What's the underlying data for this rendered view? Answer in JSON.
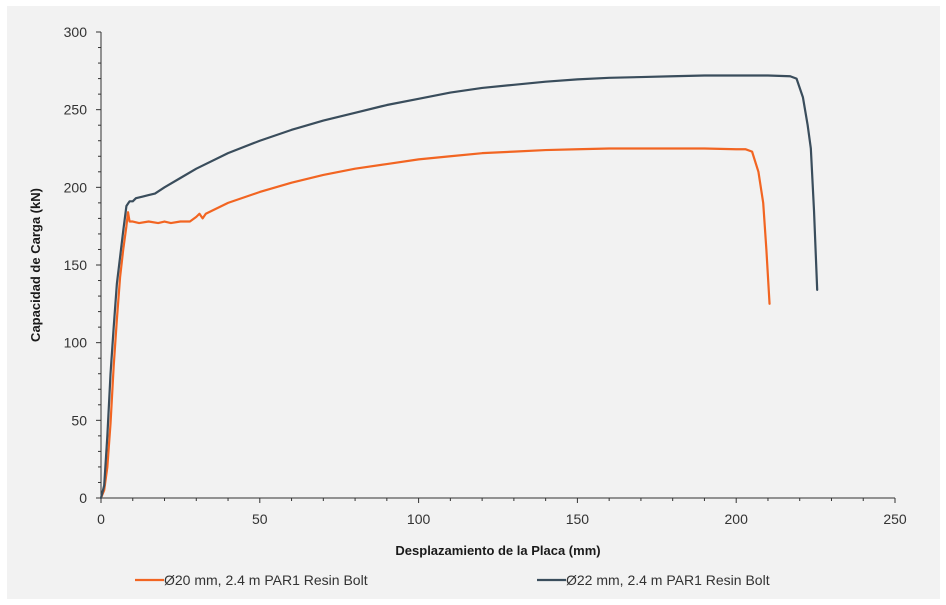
{
  "chart_data": {
    "type": "line",
    "xlabel": "Desplazamiento de la Placa (mm)",
    "ylabel": "Capacidad de Carga (kN)",
    "xlim": [
      0,
      250
    ],
    "ylim": [
      0,
      300
    ],
    "x_ticks": [
      0,
      50,
      100,
      150,
      200,
      250
    ],
    "y_ticks": [
      0,
      50,
      100,
      150,
      200,
      250,
      300
    ],
    "x_tick_labels": [
      "0",
      "50",
      "100",
      "150",
      "200",
      "250"
    ],
    "y_tick_labels": [
      "0",
      "50",
      "100",
      "150",
      "200",
      "250",
      "300"
    ],
    "grid": false,
    "legend_position": "bottom",
    "series": [
      {
        "name": "Ø20 mm, 2.4 m PAR1 Resin Bolt",
        "color": "#f26522",
        "points": [
          [
            0,
            0
          ],
          [
            1,
            5
          ],
          [
            2,
            20
          ],
          [
            3,
            48
          ],
          [
            4,
            85
          ],
          [
            5,
            115
          ],
          [
            6,
            142
          ],
          [
            7,
            160
          ],
          [
            8,
            175
          ],
          [
            8.5,
            184
          ],
          [
            9,
            178
          ],
          [
            10,
            178
          ],
          [
            12,
            177
          ],
          [
            15,
            178
          ],
          [
            18,
            177
          ],
          [
            20,
            178
          ],
          [
            22,
            177
          ],
          [
            25,
            178
          ],
          [
            28,
            178
          ],
          [
            30,
            181
          ],
          [
            31,
            183
          ],
          [
            32,
            180
          ],
          [
            33,
            183
          ],
          [
            35,
            185
          ],
          [
            40,
            190
          ],
          [
            50,
            197
          ],
          [
            60,
            203
          ],
          [
            70,
            208
          ],
          [
            80,
            212
          ],
          [
            90,
            215
          ],
          [
            100,
            218
          ],
          [
            110,
            220
          ],
          [
            120,
            222
          ],
          [
            130,
            223
          ],
          [
            140,
            224
          ],
          [
            150,
            224.5
          ],
          [
            160,
            225
          ],
          [
            170,
            225
          ],
          [
            180,
            225
          ],
          [
            190,
            225
          ],
          [
            200,
            224.5
          ],
          [
            203,
            224.5
          ],
          [
            205,
            223
          ],
          [
            207,
            210
          ],
          [
            208.5,
            190
          ],
          [
            209.5,
            160
          ],
          [
            210.5,
            125
          ]
        ]
      },
      {
        "name": "Ø22 mm, 2.4 m PAR1 Resin Bolt",
        "color": "#3a4d5c",
        "points": [
          [
            0,
            0
          ],
          [
            1,
            8
          ],
          [
            2,
            40
          ],
          [
            3,
            80
          ],
          [
            4,
            110
          ],
          [
            5,
            138
          ],
          [
            6,
            155
          ],
          [
            7,
            172
          ],
          [
            8,
            188
          ],
          [
            9,
            191
          ],
          [
            10,
            191
          ],
          [
            11,
            193
          ],
          [
            13,
            194
          ],
          [
            15,
            195
          ],
          [
            17,
            196
          ],
          [
            20,
            200
          ],
          [
            25,
            206
          ],
          [
            30,
            212
          ],
          [
            40,
            222
          ],
          [
            50,
            230
          ],
          [
            60,
            237
          ],
          [
            70,
            243
          ],
          [
            80,
            248
          ],
          [
            90,
            253
          ],
          [
            100,
            257
          ],
          [
            110,
            261
          ],
          [
            120,
            264
          ],
          [
            130,
            266
          ],
          [
            140,
            268
          ],
          [
            150,
            269.5
          ],
          [
            160,
            270.5
          ],
          [
            170,
            271
          ],
          [
            180,
            271.5
          ],
          [
            190,
            272
          ],
          [
            200,
            272
          ],
          [
            210,
            272
          ],
          [
            217,
            271.5
          ],
          [
            219,
            270
          ],
          [
            221,
            258
          ],
          [
            222.5,
            240
          ],
          [
            223.5,
            225
          ],
          [
            224.5,
            185
          ],
          [
            225.5,
            134
          ]
        ]
      }
    ]
  }
}
